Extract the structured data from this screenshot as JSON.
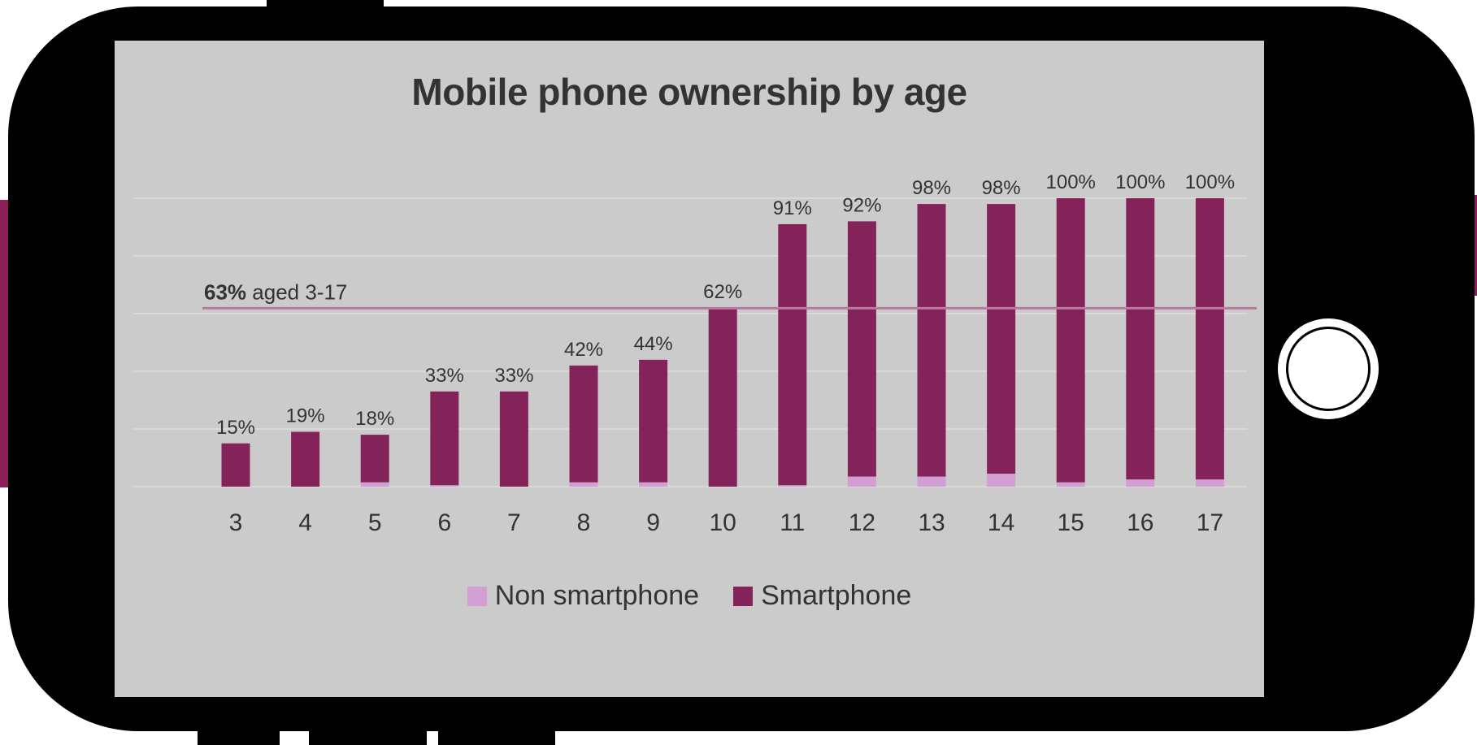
{
  "colors": {
    "smartphone": "#84235a",
    "non_smartphone": "#d19fd4",
    "average_line": "#b97a9f",
    "gridline": "#dedede",
    "screen_bg": "#cbcbcb",
    "text": "#333333",
    "phone_body": "#000000",
    "side_button": "#8a1f58"
  },
  "chart_data": {
    "type": "bar",
    "stacked": true,
    "title": "Mobile phone ownership by age",
    "xlabel": "",
    "ylabel": "",
    "ylim": [
      0,
      100
    ],
    "grid": true,
    "legend_position": "bottom-center",
    "categories": [
      "3",
      "4",
      "5",
      "6",
      "7",
      "8",
      "9",
      "10",
      "11",
      "12",
      "13",
      "14",
      "15",
      "16",
      "17"
    ],
    "series": [
      {
        "name": "Non smartphone",
        "color": "#d19fd4",
        "values": [
          0,
          0,
          1.5,
          0.5,
          0,
          1.5,
          1.5,
          0,
          0.5,
          3.5,
          3.5,
          4.5,
          1.5,
          2.5,
          2.5
        ]
      },
      {
        "name": "Smartphone",
        "color": "#84235a",
        "values": [
          15,
          19,
          16.5,
          32.5,
          33,
          40.5,
          42.5,
          62,
          90.5,
          88.5,
          94.5,
          93.5,
          98.5,
          97.5,
          97.5
        ]
      }
    ],
    "data_labels": [
      "15%",
      "19%",
      "18%",
      "33%",
      "33%",
      "42%",
      "44%",
      "62%",
      "91%",
      "92%",
      "98%",
      "98%",
      "100%",
      "100%",
      "100%"
    ],
    "reference_line": {
      "value": 63,
      "label_bold": "63%",
      "label_rest": " aged 3-17"
    }
  }
}
